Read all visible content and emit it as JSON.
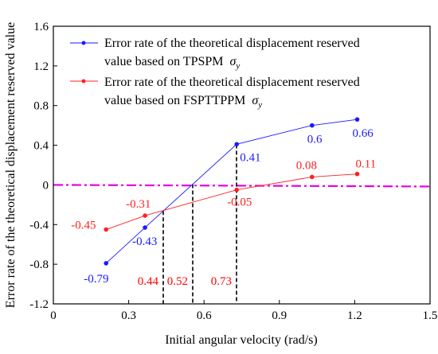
{
  "chart_data": {
    "type": "line",
    "xlabel": "Initial angular velocity (rad/s)",
    "ylabel": "Error rate of the theoretical displacement reserved value",
    "xlim": [
      0,
      1.5
    ],
    "ylim": [
      -1.2,
      1.6
    ],
    "x_ticks": [
      "0",
      "0.3",
      "0.6",
      "0.9",
      "1.2",
      "1.5"
    ],
    "y_ticks": [
      "-1.2",
      "-0.8",
      "-0.4",
      "0",
      "0.4",
      "0.8",
      "1.2",
      "1.6"
    ],
    "grid": false,
    "legend_position": "top-left",
    "series": [
      {
        "name_line1": "Error rate of the theoretical displacement reserved",
        "name_line2": "value based on TPSPM",
        "color": "#1a1aff",
        "x": [
          0.21,
          0.365,
          0.73,
          1.03,
          1.21
        ],
        "y": [
          -0.79,
          -0.43,
          0.41,
          0.6,
          0.66
        ],
        "labels": [
          "-0.79",
          "-0.43",
          "0.41",
          "0.6",
          "0.66"
        ]
      },
      {
        "name_line1": "Error rate of the theoretical displacement reserved",
        "name_line2": "value based on FSPTTPPM",
        "color": "#ff2020",
        "x": [
          0.21,
          0.365,
          0.73,
          1.03,
          1.21
        ],
        "y": [
          -0.45,
          -0.31,
          -0.05,
          0.08,
          0.11
        ],
        "labels": [
          "-0.45",
          "-0.31",
          "-0.05",
          "0.08",
          "0.11"
        ]
      }
    ],
    "sigma_symbol": "σ",
    "sigma_subscript": "y",
    "reference_line": {
      "y": 0,
      "color": "#e600e6",
      "style": "dash-dot"
    },
    "vertical_markers": [
      {
        "x": 0.44,
        "label": "0.44"
      },
      {
        "x": 0.52,
        "label": "0.52"
      },
      {
        "x": 0.73,
        "label": "0.73"
      }
    ],
    "marker_label_color": "#ff0000"
  }
}
